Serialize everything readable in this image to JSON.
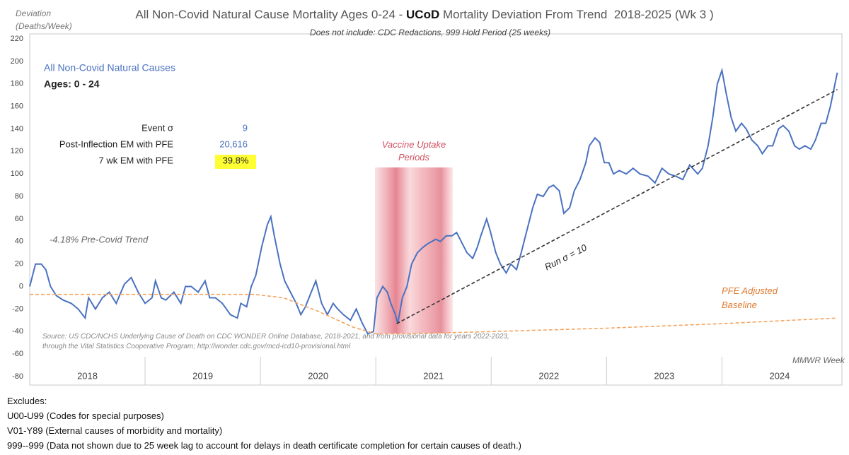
{
  "chart_data": {
    "type": "line",
    "title_parts": [
      "All Non-Covid Natural Cause Mortality Ages 0-24 - ",
      "UCoD",
      " Mortality Deviation From Trend  2018-2025 (Wk 3 )"
    ],
    "subtitle": "Does not include: CDC Redactions, 999 Hold Period (25 weeks)",
    "y_label": "Deviation (Deaths/Week)",
    "x_label": "MMWR Week",
    "ylim": [
      -80,
      220
    ],
    "yticks": [
      -80,
      -60,
      -40,
      -20,
      0,
      20,
      40,
      60,
      80,
      100,
      120,
      140,
      160,
      180,
      200,
      220
    ],
    "xlim": [
      2018,
      2025.04
    ],
    "xticks": [
      {
        "value": 2018.5,
        "label": "2018"
      },
      {
        "value": 2019.5,
        "label": "2019"
      },
      {
        "value": 2020.5,
        "label": "2020"
      },
      {
        "value": 2021.5,
        "label": "2021"
      },
      {
        "value": 2022.5,
        "label": "2022"
      },
      {
        "value": 2023.5,
        "label": "2023"
      },
      {
        "value": 2024.5,
        "label": "2024"
      }
    ],
    "grid": false,
    "series": [
      {
        "name": "All Non-Covid Natural Causes",
        "color": "#4a72c0",
        "style": "solid",
        "x": [
          2018.0,
          2018.05,
          2018.1,
          2018.14,
          2018.18,
          2018.23,
          2018.29,
          2018.36,
          2018.42,
          2018.48,
          2018.51,
          2018.57,
          2018.63,
          2018.69,
          2018.75,
          2018.82,
          2018.88,
          2018.94,
          2019.0,
          2019.06,
          2019.09,
          2019.14,
          2019.18,
          2019.25,
          2019.31,
          2019.35,
          2019.4,
          2019.46,
          2019.52,
          2019.56,
          2019.61,
          2019.67,
          2019.74,
          2019.8,
          2019.83,
          2019.88,
          2019.92,
          2019.96,
          2020.01,
          2020.06,
          2020.09,
          2020.12,
          2020.17,
          2020.21,
          2020.26,
          2020.31,
          2020.35,
          2020.39,
          2020.44,
          2020.48,
          2020.53,
          2020.58,
          2020.63,
          2020.67,
          2020.72,
          2020.78,
          2020.83,
          2020.88,
          2020.93,
          2020.98,
          2021.01,
          2021.06,
          2021.1,
          2021.13,
          2021.17,
          2021.19,
          2021.23,
          2021.27,
          2021.31,
          2021.36,
          2021.41,
          2021.45,
          2021.52,
          2021.56,
          2021.61,
          2021.66,
          2021.7,
          2021.74,
          2021.79,
          2021.84,
          2021.88,
          2021.91,
          2021.96,
          2021.99,
          2022.04,
          2022.08,
          2022.13,
          2022.17,
          2022.22,
          2022.26,
          2022.31,
          2022.36,
          2022.4,
          2022.45,
          2022.5,
          2022.54,
          2022.59,
          2022.63,
          2022.68,
          2022.72,
          2022.77,
          2022.82,
          2022.85,
          2022.9,
          2022.94,
          2022.98,
          2023.02,
          2023.06,
          2023.11,
          2023.17,
          2023.23,
          2023.29,
          2023.36,
          2023.42,
          2023.48,
          2023.54,
          2023.6,
          2023.66,
          2023.72,
          2023.79,
          2023.83,
          2023.88,
          2023.92,
          2023.96,
          2024.0,
          2024.04,
          2024.08,
          2024.12,
          2024.17,
          2024.21,
          2024.26,
          2024.31,
          2024.35,
          2024.4,
          2024.44,
          2024.49,
          2024.53,
          2024.58,
          2024.63,
          2024.67,
          2024.72,
          2024.77,
          2024.81,
          2024.86,
          2024.9,
          2024.94,
          2024.98,
          2025.0
        ],
        "values": [
          0,
          20,
          20,
          15,
          0,
          -8,
          -12,
          -15,
          -20,
          -28,
          -10,
          -20,
          -10,
          -5,
          -15,
          2,
          8,
          -5,
          -15,
          -10,
          5,
          -10,
          -12,
          -5,
          -15,
          0,
          0,
          -5,
          5,
          -10,
          -10,
          -15,
          -25,
          -28,
          -15,
          -18,
          0,
          10,
          35,
          55,
          62,
          45,
          20,
          5,
          -5,
          -15,
          -25,
          -18,
          -5,
          5,
          -15,
          -25,
          -15,
          -20,
          -25,
          -30,
          -20,
          -32,
          -42,
          -40,
          -10,
          0,
          -5,
          -15,
          -25,
          -33,
          -10,
          0,
          20,
          30,
          35,
          38,
          42,
          40,
          45,
          45,
          48,
          40,
          30,
          25,
          35,
          45,
          60,
          50,
          30,
          20,
          12,
          20,
          15,
          30,
          50,
          70,
          82,
          80,
          88,
          90,
          85,
          65,
          70,
          85,
          95,
          110,
          125,
          132,
          128,
          110,
          110,
          100,
          103,
          100,
          105,
          100,
          98,
          92,
          105,
          100,
          98,
          95,
          108,
          100,
          105,
          125,
          150,
          180,
          192,
          170,
          150,
          138,
          145,
          140,
          130,
          125,
          118,
          125,
          125,
          140,
          143,
          138,
          125,
          122,
          125,
          122,
          130,
          145,
          145,
          160,
          180,
          190
        ]
      },
      {
        "name": "PFE Adjusted Baseline",
        "color": "#f4a460",
        "style": "dashed",
        "x": [
          2018.0,
          2019.95,
          2020.2,
          2020.5,
          2020.8,
          2021.0,
          2021.3,
          2022.0,
          2023.0,
          2024.0,
          2025.0
        ],
        "values": [
          -7,
          -7,
          -10,
          -22,
          -36,
          -42,
          -42,
          -40,
          -37,
          -33,
          -28
        ]
      },
      {
        "color": "#333333",
        "style": "dashed",
        "x": [
          2021.18,
          2025.0
        ],
        "values": [
          -33,
          175
        ]
      }
    ],
    "annotations": {
      "pre_covid_trend": "-4.18% Pre-Covid Trend",
      "vaccine": "Vaccine Uptake Periods",
      "run_sigma": "Run σ = 10",
      "ages": "Ages: 0 - 24",
      "stats": [
        [
          "Event σ",
          "9"
        ],
        [
          "Post-Inflection EM with PFE",
          "20,616"
        ],
        [
          "7 wk EM with PFE",
          "39.8%"
        ]
      ],
      "source": "Source: US CDC/NCHS Underlying Cause of Death on CDC WONDER Online Database, 2018-2021, and from provisional data for years 2022-2023, through the Vital Statistics Cooperative Program; http://wonder.cdc.gov/mcd-icd10-provisional.html"
    },
    "footer": [
      "Excludes:",
      "U00-U99 (Codes for special purposes)",
      "V01-Y89 (External causes of morbidity and mortality)",
      "999--999 (Data not shown due to 25 week lag to account for delays in death certificate completion for certain causes of death.)"
    ]
  }
}
